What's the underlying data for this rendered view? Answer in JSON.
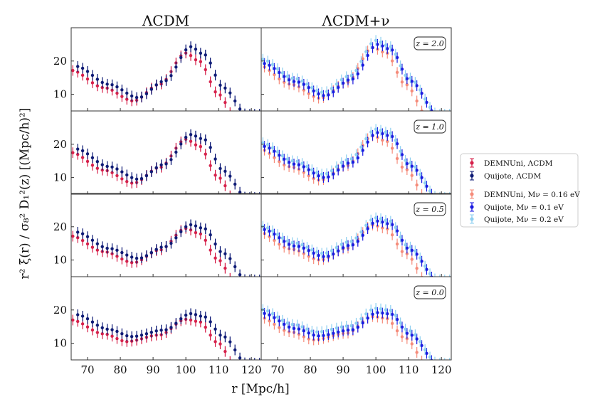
{
  "column_titles": [
    "ΛCDM",
    "ΛCDM+ν"
  ],
  "xlabel": "r [Mpc/h]",
  "ylabel": "r² ξ(r) / σ₈² D₁²(z)  [(Mpc/h)²]",
  "legend": [
    {
      "label": "DEMNUni, ΛCDM",
      "color": "#d6204a"
    },
    {
      "label": "Quijote, ΛCDM",
      "color": "#0d1a75"
    },
    {
      "label": "DEMNUni, Mν = 0.16 eV",
      "color": "#f58b7a"
    },
    {
      "label": "Quijote, Mν = 0.1 eV",
      "color": "#1919e0"
    },
    {
      "label": "Quijote, Mν = 0.2 eV",
      "color": "#8ecff0"
    }
  ],
  "chart_data": {
    "type": "scatter",
    "xlim": [
      65,
      123
    ],
    "ylim": [
      5,
      30
    ],
    "xticks": [
      70,
      80,
      90,
      100,
      110,
      120
    ],
    "yticks": [
      10,
      20
    ],
    "error_bars": true,
    "grid": false,
    "legend_position": "right",
    "rows": [
      {
        "z_label": "z = 2.0",
        "LCDM": [
          {
            "name": "DEMNUni, ΛCDM",
            "color": "#d6204a",
            "x_offset": 0,
            "points": [
              [
                65,
                17.2
              ],
              [
                75,
                12.0
              ],
              [
                84,
                8.0
              ],
              [
                92,
                13.0
              ],
              [
                100,
                22.4
              ],
              [
                104,
                20.0
              ],
              [
                110,
                10.0
              ],
              [
                115,
                3.0
              ]
            ]
          },
          {
            "name": "Quijote, ΛCDM",
            "color": "#0d1a75",
            "x_offset": 1.5,
            "points": [
              [
                65,
                18.4
              ],
              [
                75,
                13.0
              ],
              [
                84,
                9.0
              ],
              [
                92,
                14.0
              ],
              [
                100,
                24.3
              ],
              [
                104,
                22.0
              ],
              [
                110,
                12.0
              ],
              [
                117,
                4.0
              ]
            ]
          }
        ],
        "LCDMnu": [
          {
            "name": "DEMNUni, Mν = 0.16 eV",
            "color": "#f58b7a",
            "x_offset": -1,
            "points": [
              [
                65,
                18.8
              ],
              [
                75,
                13.0
              ],
              [
                84,
                8.8
              ],
              [
                92,
                13.5
              ],
              [
                100,
                24.0
              ],
              [
                104,
                22.5
              ],
              [
                110,
                13.0
              ],
              [
                117,
                3.0
              ]
            ]
          },
          {
            "name": "Quijote, Mν = 0.1 eV",
            "color": "#1919e0",
            "x_offset": 0.5,
            "points": [
              [
                65,
                19.3
              ],
              [
                75,
                13.8
              ],
              [
                84,
                9.6
              ],
              [
                92,
                14.5
              ],
              [
                100,
                25.0
              ],
              [
                104,
                23.5
              ],
              [
                110,
                14.0
              ],
              [
                119,
                3.0
              ]
            ]
          },
          {
            "name": "Quijote, Mν = 0.2 eV",
            "color": "#8ecff0",
            "x_offset": 0,
            "points": [
              [
                65,
                20.6
              ],
              [
                75,
                14.8
              ],
              [
                84,
                10.6
              ],
              [
                92,
                15.5
              ],
              [
                100,
                26.2
              ],
              [
                104,
                24.5
              ],
              [
                110,
                15.0
              ],
              [
                119,
                4.0
              ]
            ]
          }
        ]
      },
      {
        "z_label": "z = 1.0",
        "LCDM": [
          {
            "name": "DEMNUni, ΛCDM",
            "color": "#d6204a",
            "x_offset": 0,
            "points": [
              [
                65,
                17.5
              ],
              [
                75,
                12.2
              ],
              [
                84,
                8.3
              ],
              [
                92,
                13.0
              ],
              [
                100,
                21.5
              ],
              [
                104,
                19.5
              ],
              [
                110,
                10.0
              ],
              [
                115,
                3.0
              ]
            ]
          },
          {
            "name": "Quijote, ΛCDM",
            "color": "#0d1a75",
            "x_offset": 1.5,
            "points": [
              [
                65,
                18.6
              ],
              [
                75,
                13.3
              ],
              [
                84,
                9.5
              ],
              [
                92,
                14.0
              ],
              [
                100,
                22.9
              ],
              [
                104,
                21.5
              ],
              [
                110,
                12.0
              ],
              [
                117,
                4.0
              ]
            ]
          }
        ],
        "LCDMnu": [
          {
            "name": "DEMNUni, Mν = 0.16 eV",
            "color": "#f58b7a",
            "x_offset": -1,
            "points": [
              [
                65,
                18.8
              ],
              [
                75,
                13.2
              ],
              [
                84,
                9.2
              ],
              [
                92,
                13.5
              ],
              [
                100,
                22.5
              ],
              [
                104,
                21.0
              ],
              [
                110,
                12.5
              ],
              [
                117,
                3.0
              ]
            ]
          },
          {
            "name": "Quijote, Mν = 0.1 eV",
            "color": "#1919e0",
            "x_offset": 0.5,
            "points": [
              [
                65,
                19.4
              ],
              [
                75,
                14.0
              ],
              [
                84,
                10.0
              ],
              [
                92,
                14.5
              ],
              [
                100,
                23.5
              ],
              [
                104,
                22.5
              ],
              [
                110,
                13.5
              ],
              [
                119,
                3.0
              ]
            ]
          },
          {
            "name": "Quijote, Mν = 0.2 eV",
            "color": "#8ecff0",
            "x_offset": 0,
            "points": [
              [
                65,
                20.5
              ],
              [
                75,
                15.0
              ],
              [
                84,
                11.0
              ],
              [
                92,
                15.5
              ],
              [
                100,
                24.5
              ],
              [
                104,
                23.5
              ],
              [
                110,
                14.5
              ],
              [
                119,
                4.0
              ]
            ]
          }
        ]
      },
      {
        "z_label": "z = 0.5",
        "LCDM": [
          {
            "name": "DEMNUni, ΛCDM",
            "color": "#d6204a",
            "x_offset": 0,
            "points": [
              [
                65,
                17.2
              ],
              [
                75,
                12.5
              ],
              [
                84,
                9.2
              ],
              [
                92,
                13.0
              ],
              [
                100,
                19.5
              ],
              [
                104,
                18.0
              ],
              [
                110,
                10.0
              ],
              [
                115,
                3.0
              ]
            ]
          },
          {
            "name": "Quijote, ΛCDM",
            "color": "#0d1a75",
            "x_offset": 1.5,
            "points": [
              [
                65,
                18.4
              ],
              [
                75,
                13.5
              ],
              [
                84,
                10.5
              ],
              [
                92,
                14.0
              ],
              [
                100,
                20.6
              ],
              [
                104,
                19.5
              ],
              [
                110,
                12.0
              ],
              [
                117,
                4.0
              ]
            ]
          }
        ],
        "LCDMnu": [
          {
            "name": "DEMNUni, Mν = 0.16 eV",
            "color": "#f58b7a",
            "x_offset": -1,
            "points": [
              [
                65,
                18.5
              ],
              [
                75,
                13.3
              ],
              [
                84,
                10.0
              ],
              [
                92,
                13.5
              ],
              [
                100,
                20.5
              ],
              [
                104,
                19.5
              ],
              [
                110,
                12.0
              ],
              [
                117,
                3.0
              ]
            ]
          },
          {
            "name": "Quijote, Mν = 0.1 eV",
            "color": "#1919e0",
            "x_offset": 0.5,
            "points": [
              [
                65,
                19.2
              ],
              [
                75,
                14.2
              ],
              [
                84,
                11.0
              ],
              [
                92,
                14.5
              ],
              [
                100,
                21.7
              ],
              [
                104,
                20.8
              ],
              [
                110,
                13.0
              ],
              [
                119,
                3.0
              ]
            ]
          },
          {
            "name": "Quijote, Mν = 0.2 eV",
            "color": "#8ecff0",
            "x_offset": 0,
            "points": [
              [
                65,
                20.2
              ],
              [
                75,
                15.2
              ],
              [
                84,
                12.0
              ],
              [
                92,
                15.5
              ],
              [
                100,
                22.7
              ],
              [
                104,
                21.8
              ],
              [
                110,
                14.0
              ],
              [
                119,
                4.0
              ]
            ]
          }
        ]
      },
      {
        "z_label": "z = 0.0",
        "LCDM": [
          {
            "name": "DEMNUni, ΛCDM",
            "color": "#d6204a",
            "x_offset": 0,
            "points": [
              [
                65,
                17.0
              ],
              [
                75,
                12.8
              ],
              [
                82,
                10.5
              ],
              [
                92,
                12.5
              ],
              [
                100,
                17.2
              ],
              [
                104,
                16.5
              ],
              [
                110,
                10.0
              ],
              [
                115,
                3.0
              ]
            ]
          },
          {
            "name": "Quijote, ΛCDM",
            "color": "#0d1a75",
            "x_offset": 1.5,
            "points": [
              [
                65,
                18.6
              ],
              [
                75,
                14.2
              ],
              [
                82,
                12.0
              ],
              [
                92,
                14.0
              ],
              [
                100,
                18.9
              ],
              [
                104,
                18.0
              ],
              [
                110,
                12.0
              ],
              [
                117,
                4.0
              ]
            ]
          }
        ],
        "LCDMnu": [
          {
            "name": "DEMNUni, Mν = 0.16 eV",
            "color": "#f58b7a",
            "x_offset": -1,
            "points": [
              [
                65,
                18.0
              ],
              [
                75,
                13.4
              ],
              [
                82,
                11.0
              ],
              [
                92,
                13.0
              ],
              [
                100,
                18.0
              ],
              [
                104,
                17.5
              ],
              [
                110,
                11.5
              ],
              [
                117,
                3.0
              ]
            ]
          },
          {
            "name": "Quijote, Mν = 0.1 eV",
            "color": "#1919e0",
            "x_offset": 0.5,
            "points": [
              [
                65,
                19.0
              ],
              [
                75,
                14.4
              ],
              [
                82,
                12.2
              ],
              [
                92,
                14.0
              ],
              [
                100,
                19.2
              ],
              [
                104,
                18.8
              ],
              [
                110,
                12.5
              ],
              [
                119,
                3.0
              ]
            ]
          },
          {
            "name": "Quijote, Mν = 0.2 eV",
            "color": "#8ecff0",
            "x_offset": 0,
            "points": [
              [
                65,
                20.2
              ],
              [
                75,
                15.6
              ],
              [
                82,
                13.4
              ],
              [
                92,
                15.2
              ],
              [
                100,
                20.5
              ],
              [
                104,
                20.0
              ],
              [
                110,
                13.8
              ],
              [
                119,
                4.0
              ]
            ]
          }
        ]
      }
    ]
  }
}
